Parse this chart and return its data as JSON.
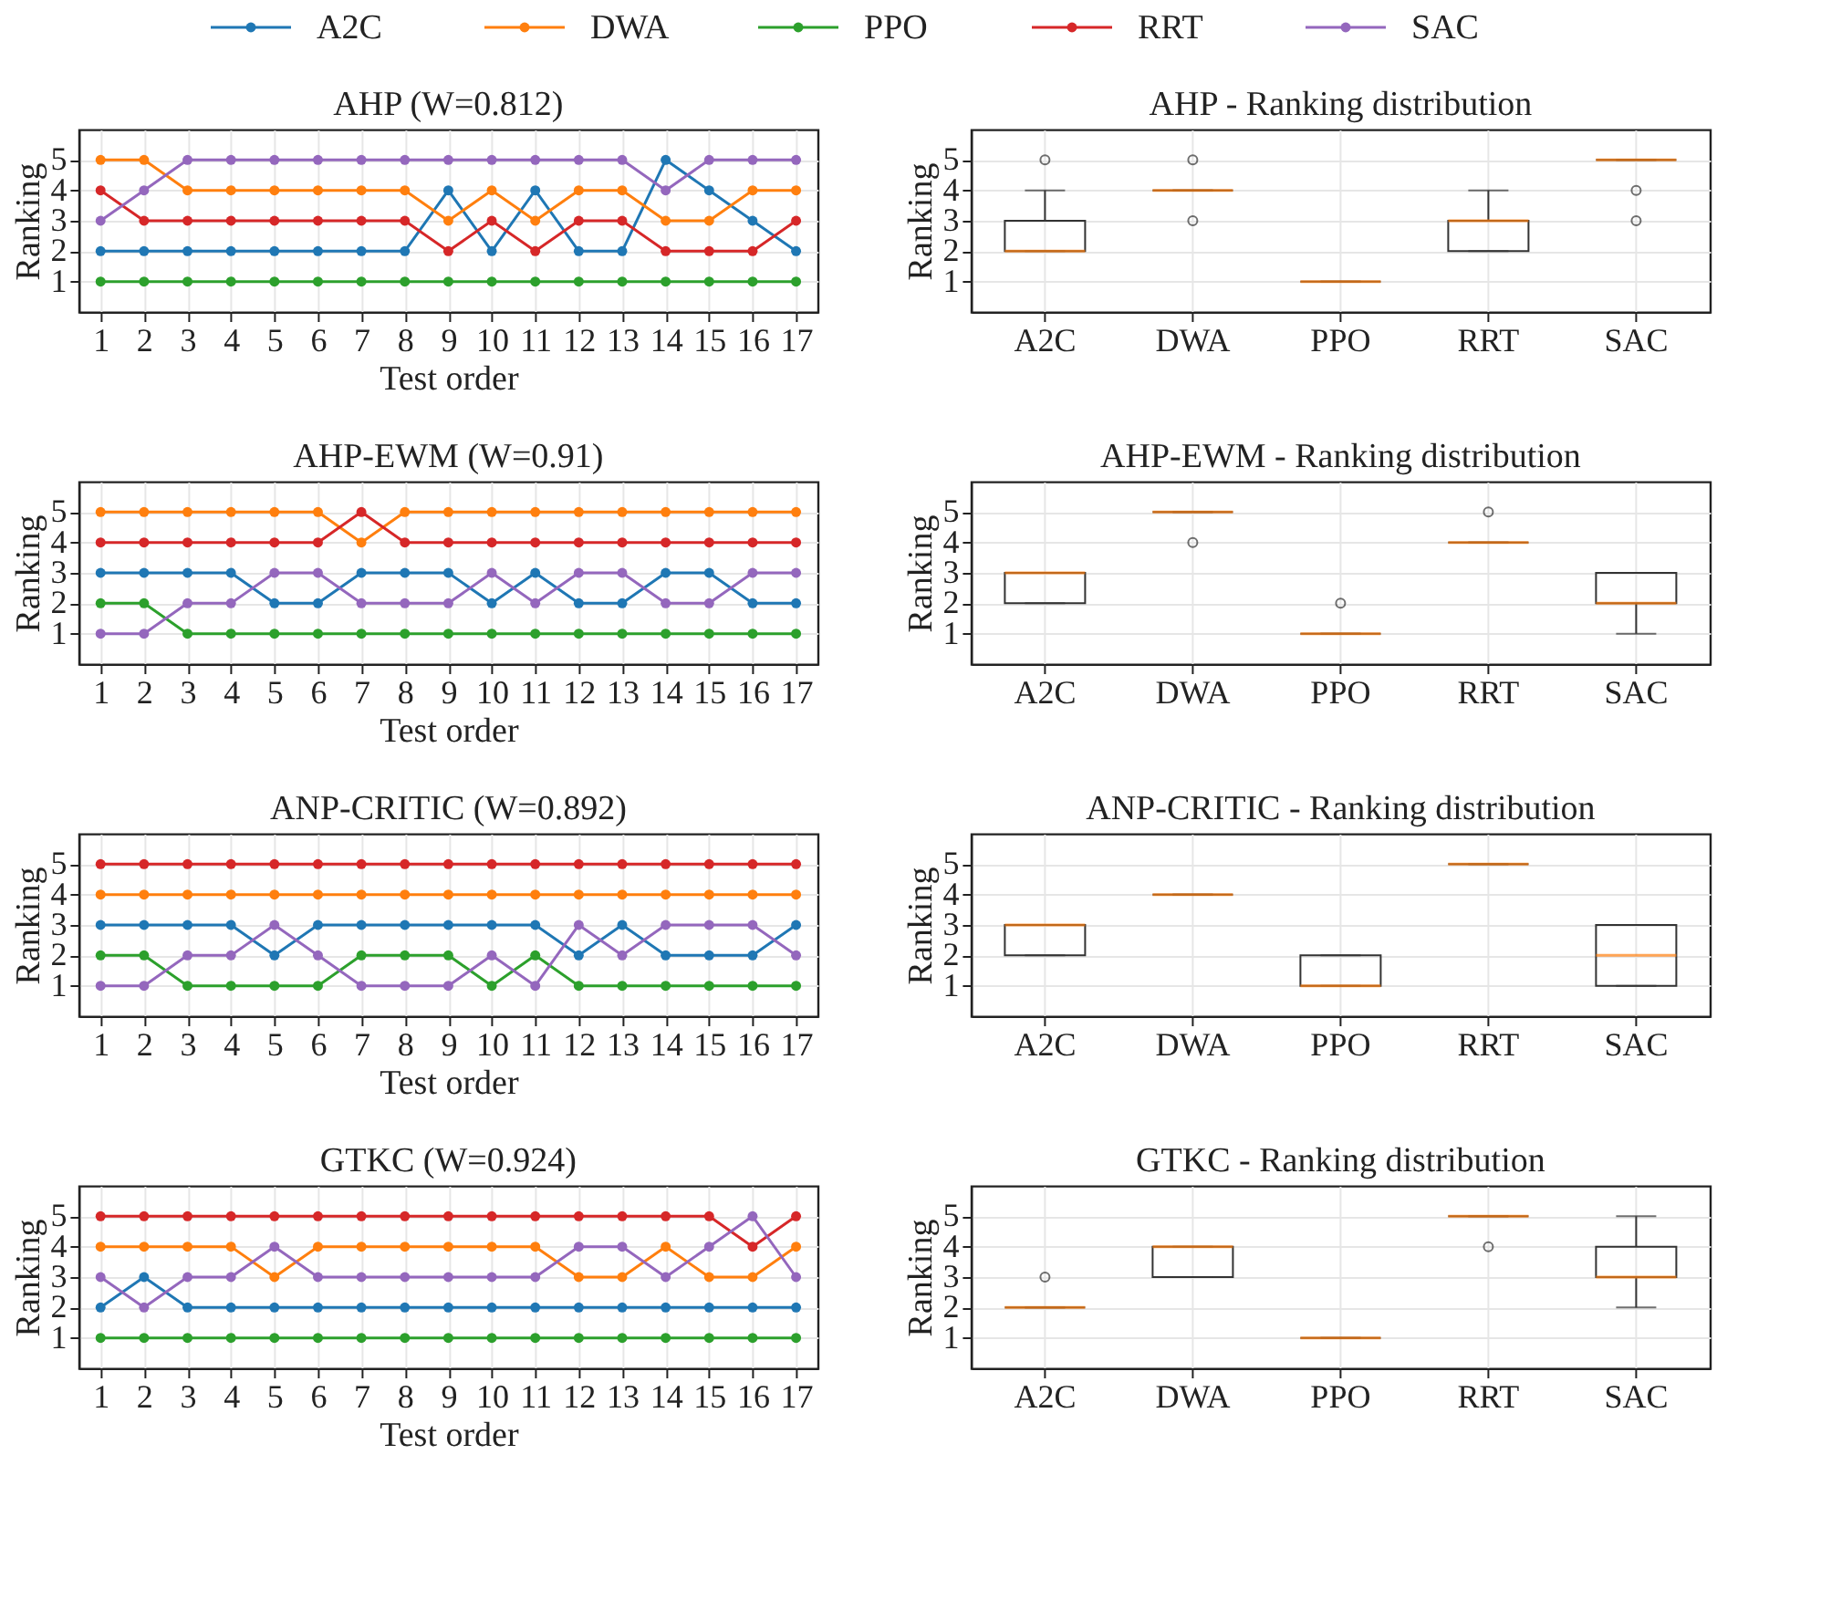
{
  "chart_data": [
    {
      "type": "line",
      "title": "AHP (W=0.812)",
      "xlabel": "Test order",
      "ylabel": "Ranking",
      "x": [
        1,
        2,
        3,
        4,
        5,
        6,
        7,
        8,
        9,
        10,
        11,
        12,
        13,
        14,
        15,
        16,
        17
      ],
      "xlim": [
        0.5,
        17.5
      ],
      "xticks": [
        1,
        2,
        3,
        4,
        5,
        6,
        7,
        8,
        9,
        10,
        11,
        12,
        13,
        14,
        15,
        16,
        17
      ],
      "ylim": [
        0,
        6
      ],
      "yticks": [
        1,
        2,
        3,
        4,
        5
      ],
      "grid": true,
      "marker": "circle",
      "legend": "top",
      "series": [
        {
          "name": "A2C",
          "color": "#1f77b4",
          "values": [
            2,
            2,
            2,
            2,
            2,
            2,
            2,
            2,
            4,
            2,
            4,
            2,
            2,
            5,
            4,
            3,
            2
          ]
        },
        {
          "name": "DWA",
          "color": "#ff7f0e",
          "values": [
            5,
            5,
            4,
            4,
            4,
            4,
            4,
            4,
            3,
            4,
            3,
            4,
            4,
            3,
            3,
            4,
            4
          ]
        },
        {
          "name": "PPO",
          "color": "#2ca02c",
          "values": [
            1,
            1,
            1,
            1,
            1,
            1,
            1,
            1,
            1,
            1,
            1,
            1,
            1,
            1,
            1,
            1,
            1
          ]
        },
        {
          "name": "RRT",
          "color": "#d62728",
          "values": [
            4,
            3,
            3,
            3,
            3,
            3,
            3,
            3,
            2,
            3,
            2,
            3,
            3,
            2,
            2,
            2,
            3
          ]
        },
        {
          "name": "SAC",
          "color": "#9467bd",
          "values": [
            3,
            4,
            5,
            5,
            5,
            5,
            5,
            5,
            5,
            5,
            5,
            5,
            5,
            4,
            5,
            5,
            5
          ]
        }
      ]
    },
    {
      "type": "box",
      "title": "AHP - Ranking distribution",
      "ylabel": "Ranking",
      "categories": [
        "A2C",
        "DWA",
        "PPO",
        "RRT",
        "SAC"
      ],
      "ylim": [
        0,
        6
      ],
      "yticks": [
        1,
        2,
        3,
        4,
        5
      ],
      "grid": true,
      "boxes": [
        {
          "low": 2,
          "q1": 2,
          "median": 2,
          "q3": 3,
          "high": 4,
          "outliers": [
            5
          ]
        },
        {
          "low": 4,
          "q1": 4,
          "median": 4,
          "q3": 4,
          "high": 4,
          "outliers": [
            3,
            5
          ]
        },
        {
          "low": 1,
          "q1": 1,
          "median": 1,
          "q3": 1,
          "high": 1
        },
        {
          "low": 2,
          "q1": 2,
          "median": 3,
          "q3": 3,
          "high": 4
        },
        {
          "low": 5,
          "q1": 5,
          "median": 5,
          "q3": 5,
          "high": 5,
          "outliers": [
            3,
            4
          ]
        }
      ]
    },
    {
      "type": "line",
      "title": "AHP-EWM (W=0.91)",
      "xlabel": "Test order",
      "ylabel": "Ranking",
      "x": [
        1,
        2,
        3,
        4,
        5,
        6,
        7,
        8,
        9,
        10,
        11,
        12,
        13,
        14,
        15,
        16,
        17
      ],
      "xlim": [
        0.5,
        17.5
      ],
      "xticks": [
        1,
        2,
        3,
        4,
        5,
        6,
        7,
        8,
        9,
        10,
        11,
        12,
        13,
        14,
        15,
        16,
        17
      ],
      "ylim": [
        0,
        6
      ],
      "yticks": [
        1,
        2,
        3,
        4,
        5
      ],
      "grid": true,
      "marker": "circle",
      "series": [
        {
          "color": "#1f77b4",
          "values": [
            3,
            3,
            3,
            3,
            2,
            2,
            3,
            3,
            3,
            2,
            3,
            2,
            2,
            3,
            3,
            2,
            2
          ]
        },
        {
          "color": "#ff7f0e",
          "values": [
            5,
            5,
            5,
            5,
            5,
            5,
            4,
            5,
            5,
            5,
            5,
            5,
            5,
            5,
            5,
            5,
            5
          ]
        },
        {
          "color": "#2ca02c",
          "values": [
            2,
            2,
            1,
            1,
            1,
            1,
            1,
            1,
            1,
            1,
            1,
            1,
            1,
            1,
            1,
            1,
            1
          ]
        },
        {
          "color": "#d62728",
          "values": [
            4,
            4,
            4,
            4,
            4,
            4,
            5,
            4,
            4,
            4,
            4,
            4,
            4,
            4,
            4,
            4,
            4
          ]
        },
        {
          "color": "#9467bd",
          "values": [
            1,
            1,
            2,
            2,
            3,
            3,
            2,
            2,
            2,
            3,
            2,
            3,
            3,
            2,
            2,
            3,
            3
          ]
        }
      ]
    },
    {
      "type": "box",
      "title": "AHP-EWM - Ranking distribution",
      "ylabel": "Ranking",
      "categories": [
        "A2C",
        "DWA",
        "PPO",
        "RRT",
        "SAC"
      ],
      "ylim": [
        0,
        6
      ],
      "yticks": [
        1,
        2,
        3,
        4,
        5
      ],
      "grid": true,
      "boxes": [
        {
          "low": 2,
          "q1": 2,
          "median": 3,
          "q3": 3,
          "high": 3
        },
        {
          "low": 5,
          "q1": 5,
          "median": 5,
          "q3": 5,
          "high": 5,
          "outliers": [
            4
          ]
        },
        {
          "low": 1,
          "q1": 1,
          "median": 1,
          "q3": 1,
          "high": 1,
          "outliers": [
            2
          ]
        },
        {
          "low": 4,
          "q1": 4,
          "median": 4,
          "q3": 4,
          "high": 4,
          "outliers": [
            5
          ]
        },
        {
          "low": 1,
          "q1": 2,
          "median": 2,
          "q3": 3,
          "high": 3
        }
      ]
    },
    {
      "type": "line",
      "title": "ANP-CRITIC (W=0.892)",
      "xlabel": "Test order",
      "ylabel": "Ranking",
      "x": [
        1,
        2,
        3,
        4,
        5,
        6,
        7,
        8,
        9,
        10,
        11,
        12,
        13,
        14,
        15,
        16,
        17
      ],
      "xlim": [
        0.5,
        17.5
      ],
      "xticks": [
        1,
        2,
        3,
        4,
        5,
        6,
        7,
        8,
        9,
        10,
        11,
        12,
        13,
        14,
        15,
        16,
        17
      ],
      "ylim": [
        0,
        6
      ],
      "yticks": [
        1,
        2,
        3,
        4,
        5
      ],
      "grid": true,
      "marker": "circle",
      "series": [
        {
          "color": "#1f77b4",
          "values": [
            3,
            3,
            3,
            3,
            2,
            3,
            3,
            3,
            3,
            3,
            3,
            2,
            3,
            2,
            2,
            2,
            3
          ]
        },
        {
          "color": "#ff7f0e",
          "values": [
            4,
            4,
            4,
            4,
            4,
            4,
            4,
            4,
            4,
            4,
            4,
            4,
            4,
            4,
            4,
            4,
            4
          ]
        },
        {
          "color": "#2ca02c",
          "values": [
            2,
            2,
            1,
            1,
            1,
            1,
            2,
            2,
            2,
            1,
            2,
            1,
            1,
            1,
            1,
            1,
            1
          ]
        },
        {
          "color": "#d62728",
          "values": [
            5,
            5,
            5,
            5,
            5,
            5,
            5,
            5,
            5,
            5,
            5,
            5,
            5,
            5,
            5,
            5,
            5
          ]
        },
        {
          "color": "#9467bd",
          "values": [
            1,
            1,
            2,
            2,
            3,
            2,
            1,
            1,
            1,
            2,
            1,
            3,
            2,
            3,
            3,
            3,
            2
          ]
        }
      ]
    },
    {
      "type": "box",
      "title": "ANP-CRITIC - Ranking distribution",
      "ylabel": "Ranking",
      "categories": [
        "A2C",
        "DWA",
        "PPO",
        "RRT",
        "SAC"
      ],
      "ylim": [
        0,
        6
      ],
      "yticks": [
        1,
        2,
        3,
        4,
        5
      ],
      "grid": true,
      "boxes": [
        {
          "low": 2,
          "q1": 2,
          "median": 3,
          "q3": 3,
          "high": 3
        },
        {
          "low": 4,
          "q1": 4,
          "median": 4,
          "q3": 4,
          "high": 4
        },
        {
          "low": 1,
          "q1": 1,
          "median": 1,
          "q3": 2,
          "high": 2
        },
        {
          "low": 5,
          "q1": 5,
          "median": 5,
          "q3": 5,
          "high": 5
        },
        {
          "low": 1,
          "q1": 1,
          "median": 2,
          "q3": 3,
          "high": 3
        }
      ]
    },
    {
      "type": "line",
      "title": "GTKC (W=0.924)",
      "xlabel": "Test order",
      "ylabel": "Ranking",
      "x": [
        1,
        2,
        3,
        4,
        5,
        6,
        7,
        8,
        9,
        10,
        11,
        12,
        13,
        14,
        15,
        16,
        17
      ],
      "xlim": [
        0.5,
        17.5
      ],
      "xticks": [
        1,
        2,
        3,
        4,
        5,
        6,
        7,
        8,
        9,
        10,
        11,
        12,
        13,
        14,
        15,
        16,
        17
      ],
      "ylim": [
        0,
        6
      ],
      "yticks": [
        1,
        2,
        3,
        4,
        5
      ],
      "grid": true,
      "marker": "circle",
      "series": [
        {
          "color": "#1f77b4",
          "values": [
            2,
            3,
            2,
            2,
            2,
            2,
            2,
            2,
            2,
            2,
            2,
            2,
            2,
            2,
            2,
            2,
            2
          ]
        },
        {
          "color": "#ff7f0e",
          "values": [
            4,
            4,
            4,
            4,
            3,
            4,
            4,
            4,
            4,
            4,
            4,
            3,
            3,
            4,
            3,
            3,
            4
          ]
        },
        {
          "color": "#2ca02c",
          "values": [
            1,
            1,
            1,
            1,
            1,
            1,
            1,
            1,
            1,
            1,
            1,
            1,
            1,
            1,
            1,
            1,
            1
          ]
        },
        {
          "color": "#d62728",
          "values": [
            5,
            5,
            5,
            5,
            5,
            5,
            5,
            5,
            5,
            5,
            5,
            5,
            5,
            5,
            5,
            4,
            5
          ]
        },
        {
          "color": "#9467bd",
          "values": [
            3,
            2,
            3,
            3,
            4,
            3,
            3,
            3,
            3,
            3,
            3,
            4,
            4,
            3,
            4,
            5,
            3
          ]
        }
      ]
    },
    {
      "type": "box",
      "title": "GTKC - Ranking distribution",
      "ylabel": "Ranking",
      "categories": [
        "A2C",
        "DWA",
        "PPO",
        "RRT",
        "SAC"
      ],
      "ylim": [
        0,
        6
      ],
      "yticks": [
        1,
        2,
        3,
        4,
        5
      ],
      "grid": true,
      "boxes": [
        {
          "low": 2,
          "q1": 2,
          "median": 2,
          "q3": 2,
          "high": 2,
          "outliers": [
            3
          ]
        },
        {
          "low": 3,
          "q1": 3,
          "median": 4,
          "q3": 4,
          "high": 4
        },
        {
          "low": 1,
          "q1": 1,
          "median": 1,
          "q3": 1,
          "high": 1
        },
        {
          "low": 5,
          "q1": 5,
          "median": 5,
          "q3": 5,
          "high": 5,
          "outliers": [
            4
          ]
        },
        {
          "low": 2,
          "q1": 3,
          "median": 3,
          "q3": 4,
          "high": 5
        }
      ]
    }
  ]
}
